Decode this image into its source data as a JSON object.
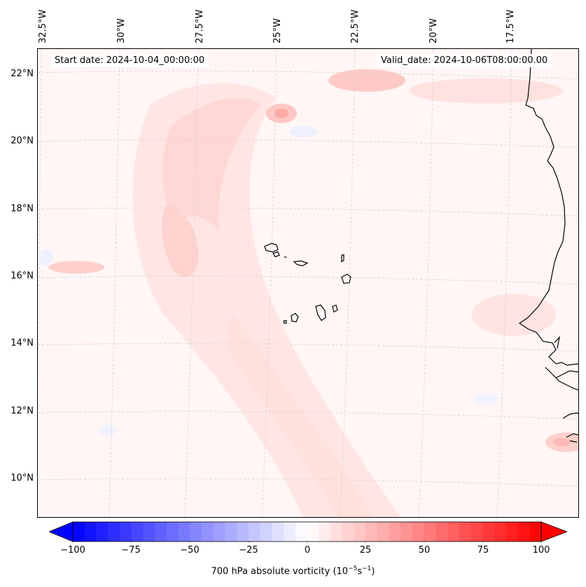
{
  "header": {
    "start_date": "Start date: 2024-10-04_00:00:00",
    "valid_date": "Valid_date: 2024-10-06T08:00:00.00"
  },
  "axes": {
    "lon_labels": [
      "32.5°W",
      "30°W",
      "27.5°W",
      "25°W",
      "22.5°W",
      "20°W",
      "17.5°W"
    ],
    "lat_labels": [
      "22°N",
      "20°N",
      "18°N",
      "16°N",
      "14°N",
      "12°N",
      "10°N"
    ]
  },
  "colorbar": {
    "ticks": [
      "−100",
      "−75",
      "−50",
      "−25",
      "0",
      "25",
      "50",
      "75",
      "100"
    ],
    "title_text": "700 hPa absolute vorticity (10",
    "title_sup1": "−5",
    "title_mid": "s",
    "title_sup2": "−1",
    "title_end": ")",
    "range": [
      -100,
      100
    ],
    "levels_step": 5,
    "colormap": "bwr",
    "low_color": "#0000ff",
    "mid_color": "#ffffff",
    "high_color": "#ff0000"
  }
}
